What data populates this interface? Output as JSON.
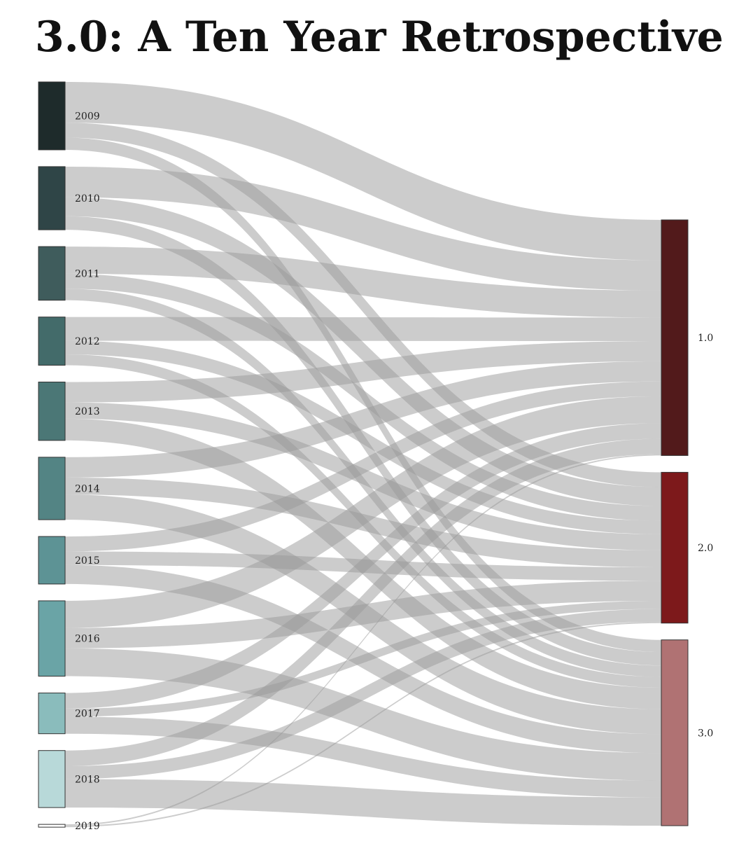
{
  "title": "3.0: A Ten Year Retrospective",
  "chart_data": {
    "type": "sankey",
    "title": "3.0: A Ten Year Retrospective",
    "sources": [
      {
        "label": "2009",
        "value": 100,
        "color": "#1e2b2b"
      },
      {
        "label": "2010",
        "value": 93,
        "color": "#2f4547"
      },
      {
        "label": "2011",
        "value": 79,
        "color": "#3f5c5c"
      },
      {
        "label": "2012",
        "value": 71,
        "color": "#436b6a"
      },
      {
        "label": "2013",
        "value": 86,
        "color": "#4b7776"
      },
      {
        "label": "2014",
        "value": 92,
        "color": "#538484"
      },
      {
        "label": "2015",
        "value": 70,
        "color": "#5d9395"
      },
      {
        "label": "2016",
        "value": 111,
        "color": "#6aa4a6"
      },
      {
        "label": "2017",
        "value": 60,
        "color": "#8abcbc"
      },
      {
        "label": "2018",
        "value": 84,
        "color": "#b8d9d9"
      },
      {
        "label": "2019",
        "value": 4,
        "color": "#ffffff"
      }
    ],
    "targets": [
      {
        "label": "1.0",
        "value": 350,
        "color": "#521a1b"
      },
      {
        "label": "2.0",
        "value": 224,
        "color": "#7d191b"
      },
      {
        "label": "3.0",
        "value": 276,
        "color": "#b07273"
      }
    ],
    "flows": [
      {
        "source": "2009",
        "values": [
          60,
          22,
          18
        ]
      },
      {
        "source": "2010",
        "values": [
          45,
          28,
          20
        ]
      },
      {
        "source": "2011",
        "values": [
          40,
          22,
          17
        ]
      },
      {
        "source": "2012",
        "values": [
          35,
          20,
          16
        ]
      },
      {
        "source": "2013",
        "values": [
          30,
          24,
          32
        ]
      },
      {
        "source": "2014",
        "values": [
          30,
          25,
          37
        ]
      },
      {
        "source": "2015",
        "values": [
          22,
          20,
          28
        ]
      },
      {
        "source": "2016",
        "values": [
          40,
          30,
          41
        ]
      },
      {
        "source": "2017",
        "values": [
          23,
          12,
          25
        ]
      },
      {
        "source": "2018",
        "values": [
          23,
          19,
          42
        ]
      },
      {
        "source": "2019",
        "values": [
          2,
          2,
          0
        ]
      }
    ],
    "link_color": "#999999",
    "link_opacity": 0.5
  }
}
